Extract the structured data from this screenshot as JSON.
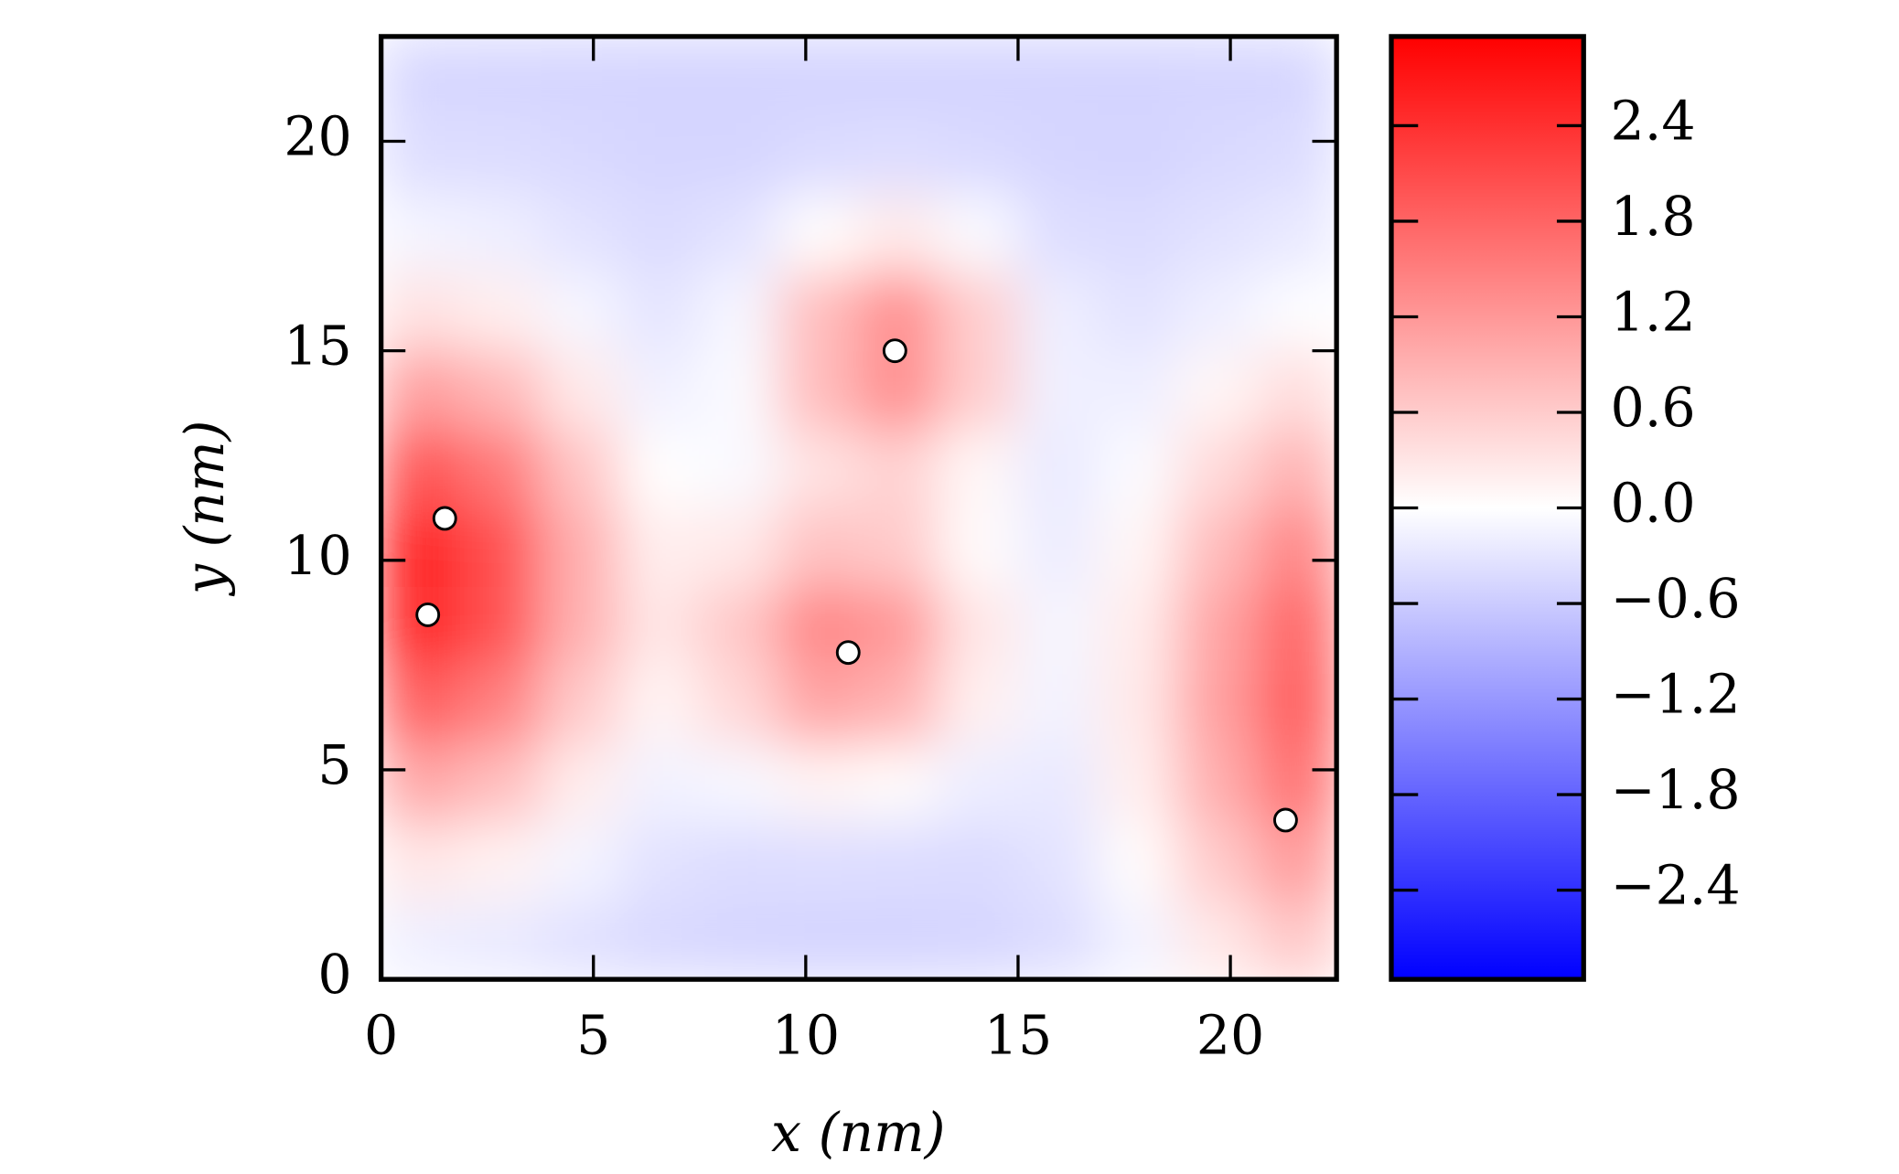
{
  "chart_data": {
    "type": "heatmap",
    "xlabel": "x (nm)",
    "ylabel": "y (nm)",
    "xlim": [
      0,
      22.5
    ],
    "ylim": [
      0,
      22.5
    ],
    "xticks": [
      0,
      5,
      10,
      15,
      20
    ],
    "yticks": [
      0,
      5,
      10,
      15,
      20
    ],
    "colormap": "bwr",
    "clim": [
      -2.96,
      2.96
    ],
    "cticks": [
      {
        "value": -2.4,
        "label": "−2.4"
      },
      {
        "value": -1.8,
        "label": "−1.8"
      },
      {
        "value": -1.2,
        "label": "−1.2"
      },
      {
        "value": -0.6,
        "label": "−0.6"
      },
      {
        "value": 0,
        "label": "0.0"
      },
      0.6,
      1.2,
      1.8,
      2.4
    ],
    "field": {
      "x": [
        0.94,
        2.81,
        4.69,
        6.56,
        8.44,
        10.31,
        12.19,
        14.06,
        15.94,
        17.81,
        19.69,
        21.56
      ],
      "y": [
        0.94,
        2.81,
        4.69,
        6.56,
        8.44,
        10.31,
        12.19,
        14.06,
        15.94,
        17.81,
        19.69,
        21.56
      ],
      "z": [
        [
          -0.19,
          -0.24,
          -0.35,
          -0.44,
          -0.48,
          -0.5,
          -0.5,
          -0.48,
          -0.39,
          -0.14,
          0.27,
          0.64
        ],
        [
          0.28,
          0.15,
          -0.13,
          -0.34,
          -0.4,
          -0.38,
          -0.4,
          -0.42,
          -0.33,
          0.03,
          0.62,
          1.16
        ],
        [
          1.02,
          0.76,
          0.21,
          -0.15,
          -0.09,
          0.13,
          0.05,
          -0.21,
          -0.25,
          0.18,
          0.94,
          1.64
        ],
        [
          1.86,
          1.46,
          0.61,
          0.13,
          0.45,
          1.06,
          0.89,
          0.17,
          -0.14,
          0.25,
          1.1,
          1.88
        ],
        [
          2.51,
          2.0,
          0.91,
          0.29,
          0.65,
          1.39,
          1.19,
          0.29,
          -0.12,
          0.22,
          1.04,
          1.78
        ],
        [
          2.54,
          2.02,
          0.93,
          0.2,
          0.26,
          0.71,
          0.62,
          0.05,
          -0.21,
          0.1,
          0.78,
          1.4
        ],
        [
          1.98,
          1.56,
          0.67,
          0.01,
          -0.07,
          0.34,
          0.52,
          0.09,
          -0.24,
          -0.05,
          0.43,
          0.88
        ],
        [
          1.11,
          0.84,
          0.26,
          -0.16,
          -0.06,
          0.78,
          1.3,
          0.58,
          -0.17,
          -0.19,
          0.1,
          0.38
        ],
        [
          0.34,
          0.2,
          -0.11,
          -0.3,
          -0.1,
          0.77,
          1.3,
          0.57,
          -0.2,
          -0.32,
          -0.18,
          -0.02
        ],
        [
          -0.13,
          -0.19,
          -0.33,
          -0.41,
          -0.33,
          0.02,
          0.24,
          -0.06,
          -0.38,
          -0.41,
          -0.34,
          -0.26
        ],
        [
          -0.38,
          -0.4,
          -0.44,
          -0.48,
          -0.48,
          -0.42,
          -0.38,
          -0.43,
          -0.48,
          -0.5,
          -0.44,
          -0.4
        ],
        [
          -0.47,
          -0.48,
          -0.49,
          -0.5,
          -0.5,
          -0.5,
          -0.5,
          -0.5,
          -0.5,
          -0.5,
          -0.49,
          -0.48
        ]
      ]
    },
    "points": {
      "x": [
        1.1,
        1.5,
        12.1,
        11.0,
        21.3
      ],
      "y": [
        8.7,
        11.0,
        15.0,
        7.8,
        3.8
      ],
      "color": "#ffffff"
    }
  }
}
